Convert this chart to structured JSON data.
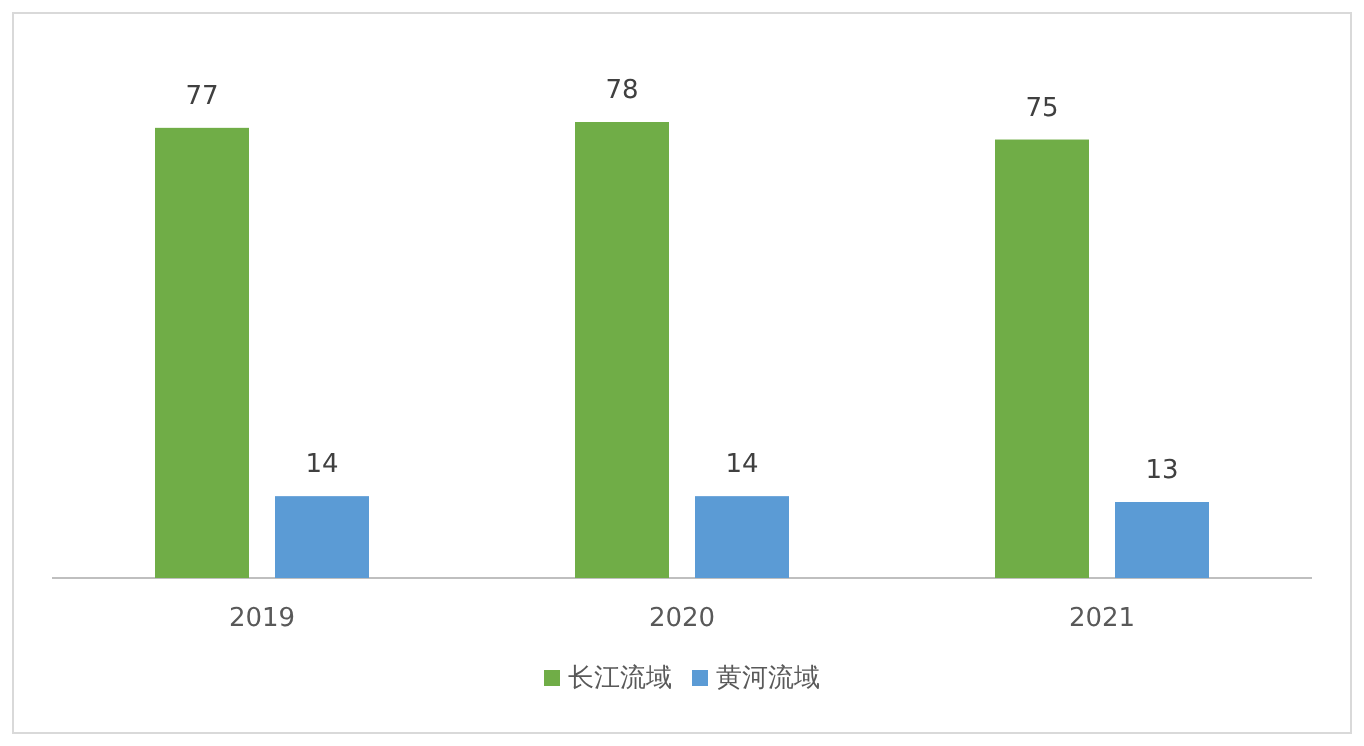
{
  "chart_data": {
    "type": "bar",
    "categories": [
      "2019",
      "2020",
      "2021"
    ],
    "series": [
      {
        "name": "长江流域",
        "color": "#70ad47",
        "values": [
          77,
          78,
          75
        ]
      },
      {
        "name": "黄河流域",
        "color": "#5b9bd5",
        "values": [
          14,
          14,
          13
        ]
      }
    ],
    "data_labels": true,
    "legend": "bottom"
  }
}
